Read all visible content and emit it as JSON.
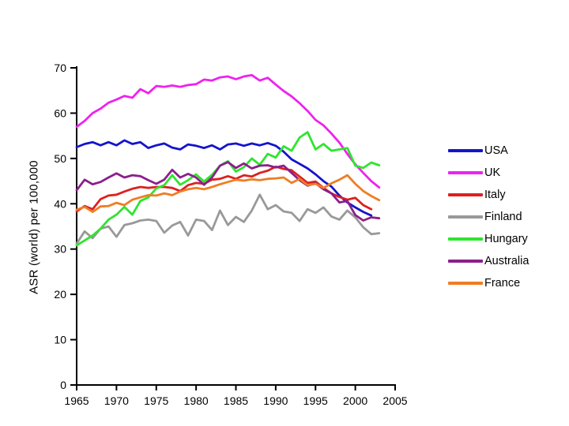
{
  "chart_data": {
    "type": "line",
    "title": "",
    "xlabel": "",
    "ylabel": "ASR (world) per 100,000",
    "x_axis": {
      "ticks": [
        1965,
        1970,
        1975,
        1980,
        1985,
        1990,
        1995,
        2000,
        2005
      ],
      "min": 1965,
      "max": 2005
    },
    "y_axis": {
      "ticks": [
        0,
        10,
        20,
        30,
        40,
        50,
        60,
        70
      ],
      "min": 0,
      "max": 70
    },
    "grid": false,
    "legend_position": "right",
    "years": [
      1965,
      1966,
      1967,
      1968,
      1969,
      1970,
      1971,
      1972,
      1973,
      1974,
      1975,
      1976,
      1977,
      1978,
      1979,
      1980,
      1981,
      1982,
      1983,
      1984,
      1985,
      1986,
      1987,
      1988,
      1989,
      1990,
      1991,
      1992,
      1993,
      1994,
      1995,
      1996,
      1997,
      1998,
      1999,
      2000,
      2001,
      2002,
      2003
    ],
    "series": [
      {
        "name": "USA",
        "color": "#1414cc",
        "values": [
          52.5,
          53.2,
          53.6,
          52.9,
          53.6,
          52.9,
          54,
          53.2,
          53.6,
          52.3,
          52.9,
          53.3,
          52.4,
          52,
          53.1,
          52.8,
          52.3,
          52.9,
          52,
          53.1,
          53.3,
          52.8,
          53.3,
          52.9,
          53.4,
          52.8,
          51.5,
          49.8,
          48.8,
          47.8,
          46.5,
          45,
          43.8,
          41.8,
          40.3,
          39.2,
          38.2,
          37.4,
          null
        ]
      },
      {
        "name": "UK",
        "color": "#ee22ee",
        "values": [
          57,
          58.3,
          60,
          61,
          62.3,
          63,
          63.8,
          63.4,
          65.3,
          64.4,
          66,
          65.8,
          66.1,
          65.8,
          66.2,
          66.4,
          67.4,
          67.2,
          67.9,
          68.1,
          67.5,
          68.1,
          68.4,
          67.2,
          67.8,
          66.3,
          64.9,
          63.7,
          62.2,
          60.5,
          58.5,
          57.3,
          55.5,
          53.5,
          51,
          48.7,
          46.8,
          45,
          43.6
        ]
      },
      {
        "name": "Italy",
        "color": "#dd2020",
        "values": [
          38.3,
          39.5,
          38.8,
          41,
          41.8,
          42,
          42.7,
          43.3,
          43.7,
          43.5,
          43.7,
          43.7,
          43.5,
          42.8,
          44.1,
          44.6,
          44.4,
          45.3,
          45.5,
          46.1,
          45.5,
          46.3,
          46,
          46.8,
          47.3,
          48.2,
          47.7,
          47.4,
          46,
          44.6,
          44.9,
          43.5,
          42.3,
          41.5,
          40.9,
          41.3,
          39.7,
          38.8,
          null
        ]
      },
      {
        "name": "Finland",
        "color": "#999999",
        "values": [
          31.2,
          33.9,
          32.4,
          34.5,
          35,
          32.7,
          35.3,
          35.7,
          36.3,
          36.5,
          36.2,
          33.6,
          35.2,
          36,
          33,
          36.5,
          36.2,
          34.2,
          38.5,
          35.3,
          37.1,
          36,
          38.5,
          42,
          38.8,
          39.7,
          38.3,
          38,
          36.2,
          38.8,
          38,
          39.2,
          37.2,
          36.5,
          38.5,
          37,
          34.8,
          33.3,
          33.5
        ]
      },
      {
        "name": "Hungary",
        "color": "#2ee52e",
        "values": [
          30.8,
          31.9,
          33,
          34.5,
          36.5,
          37.6,
          39.3,
          37.6,
          40.6,
          41.4,
          43.4,
          44.1,
          46.3,
          44.2,
          45.2,
          46.5,
          44.9,
          46.4,
          48.4,
          49.4,
          47.1,
          48.1,
          50,
          48.6,
          51,
          50.2,
          52.7,
          51.7,
          54.6,
          55.8,
          52,
          53.2,
          51.7,
          52,
          52.3,
          48.4,
          47.9,
          49.1,
          48.5
        ]
      },
      {
        "name": "Australia",
        "color": "#8b1f8b",
        "values": [
          43,
          45.3,
          44.3,
          44.8,
          45.8,
          46.7,
          45.8,
          46.3,
          46.1,
          45.2,
          44.4,
          45.3,
          47.5,
          45.8,
          46.6,
          45.8,
          44.2,
          45.8,
          48.4,
          49.2,
          47.9,
          48.9,
          47.8,
          48.4,
          48.5,
          48,
          48.4,
          46.8,
          45.2,
          44,
          44.5,
          43.2,
          42.3,
          40.3,
          40.6,
          37.5,
          36.3,
          37,
          36.8
        ]
      },
      {
        "name": "France",
        "color": "#ef7d24",
        "values": [
          38.7,
          39.3,
          38.2,
          39.4,
          39.5,
          40.2,
          39.7,
          40.9,
          41.4,
          41.9,
          41.8,
          42.3,
          41.9,
          42.7,
          43.2,
          43.5,
          43.2,
          43.7,
          44.3,
          44.8,
          45.3,
          45.1,
          45.4,
          45.2,
          45.5,
          45.6,
          45.8,
          44.6,
          45.5,
          44.1,
          44.4,
          43.5,
          44.5,
          45.3,
          46.3,
          44.4,
          42.8,
          41.7,
          40.8
        ]
      }
    ],
    "axis_color": "#000000"
  },
  "legend": {
    "items": [
      "USA",
      "UK",
      "Italy",
      "Finland",
      "Hungary",
      "Australia",
      "France"
    ]
  }
}
